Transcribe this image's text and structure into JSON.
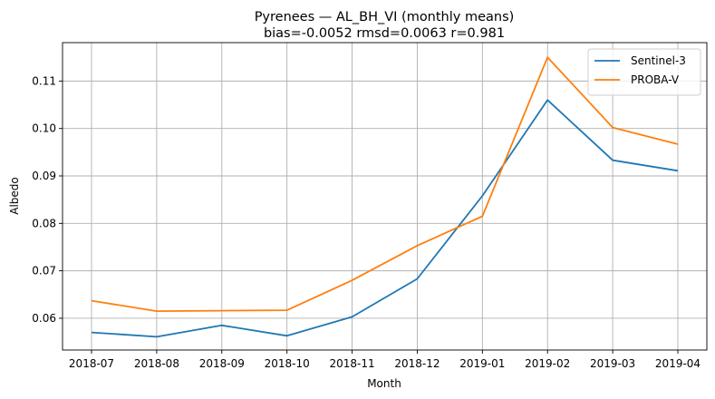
{
  "chart_data": {
    "type": "line",
    "title": "Pyrenees — AL_BH_VI (monthly means)",
    "subtitle": "bias=-0.0052  rmsd=0.0063  r=0.981",
    "xlabel": "Month",
    "ylabel": "Albedo",
    "categories": [
      "2018-07",
      "2018-08",
      "2018-09",
      "2018-10",
      "2018-11",
      "2018-12",
      "2019-01",
      "2019-02",
      "2019-03",
      "2019-04"
    ],
    "ylim": [
      0.0533,
      0.1181
    ],
    "yticks": [
      0.06,
      0.07,
      0.08,
      0.09,
      0.1,
      0.11
    ],
    "ytick_labels": [
      "0.06",
      "0.07",
      "0.08",
      "0.09",
      "0.10",
      "0.11"
    ],
    "grid": true,
    "legend_position": "top-right",
    "series": [
      {
        "name": "Sentinel-3",
        "color": "#1f77b4",
        "values": [
          0.057,
          0.0561,
          0.0585,
          0.0563,
          0.0603,
          0.0683,
          0.0858,
          0.106,
          0.0933,
          0.0911
        ]
      },
      {
        "name": "PROBA-V",
        "color": "#ff7f0e",
        "values": [
          0.0637,
          0.0615,
          0.0616,
          0.0617,
          0.068,
          0.0753,
          0.0815,
          0.115,
          0.1002,
          0.0967
        ]
      }
    ]
  }
}
